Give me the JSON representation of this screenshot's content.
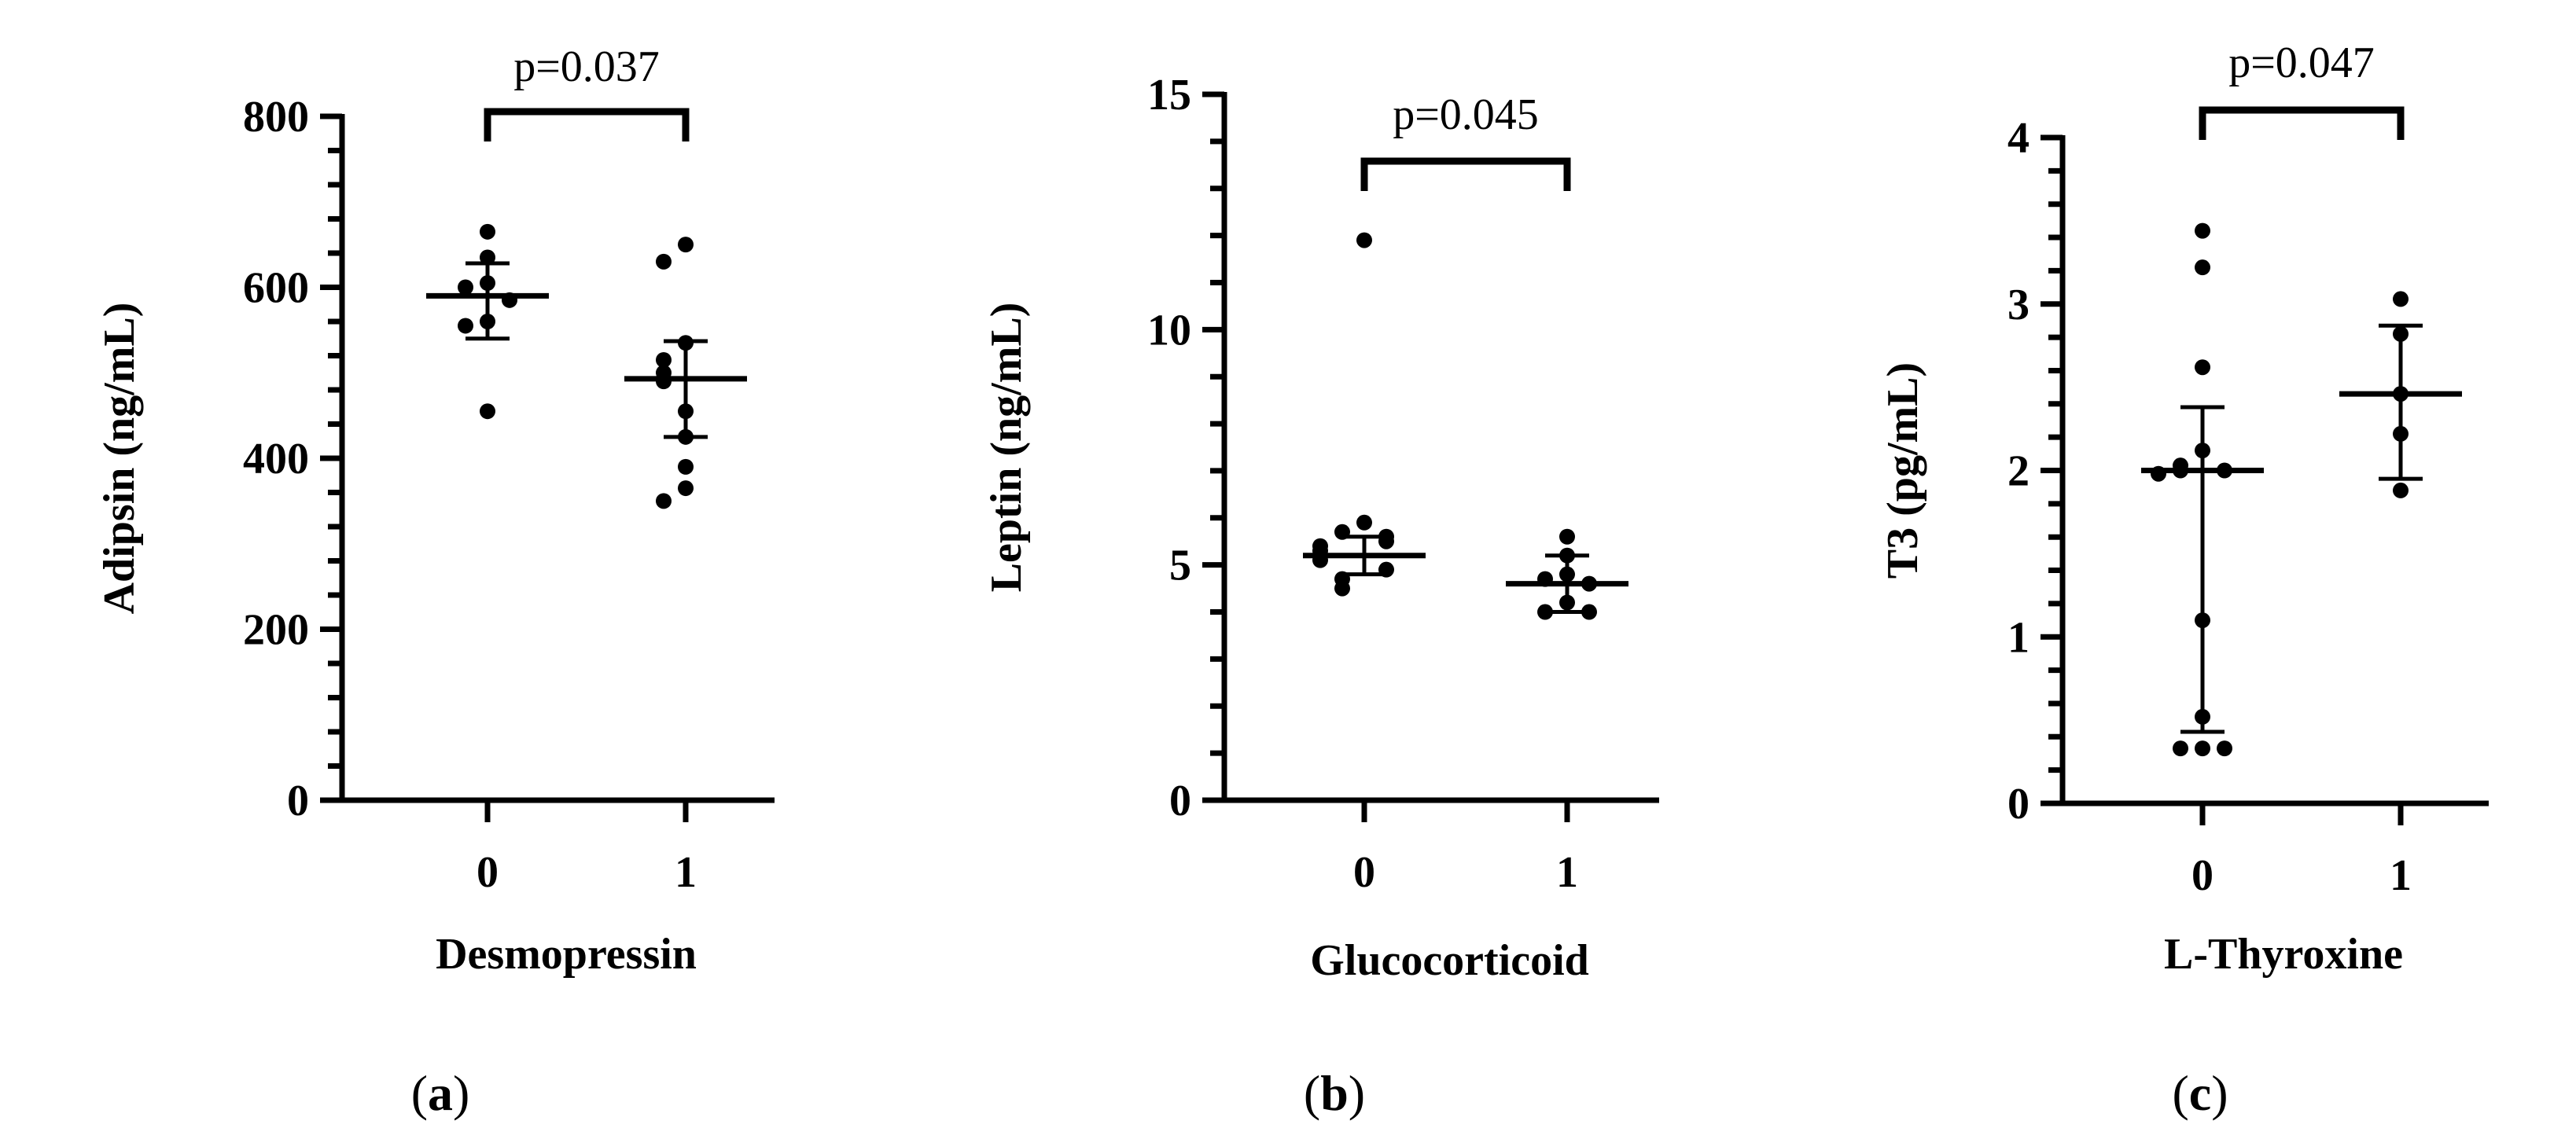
{
  "chart_data": [
    {
      "type": "scatter",
      "panel_label": "a",
      "xlabel": "Desmopressin",
      "ylabel": "Adipsin (ng/mL)",
      "categories": [
        "0",
        "1"
      ],
      "yticks": [
        "0",
        "200",
        "400",
        "600",
        "800"
      ],
      "ylim": [
        0,
        800
      ],
      "pvalue": "p=0.037",
      "groups": [
        {
          "category": "0",
          "mean": 590,
          "err_low": 540,
          "err_high": 628,
          "points": [
            665,
            635,
            605,
            600,
            585,
            560,
            555,
            455
          ]
        },
        {
          "category": "1",
          "mean": 493,
          "err_low": 425,
          "err_high": 537,
          "points": [
            650,
            630,
            535,
            515,
            500,
            490,
            455,
            425,
            390,
            365,
            350
          ]
        }
      ]
    },
    {
      "type": "scatter",
      "panel_label": "b",
      "xlabel": "Glucocorticoid",
      "ylabel": "Leptin (ng/mL)",
      "categories": [
        "0",
        "1"
      ],
      "yticks": [
        "0",
        "5",
        "10",
        "15"
      ],
      "ylim": [
        0,
        15
      ],
      "pvalue": "p=0.045",
      "groups": [
        {
          "category": "0",
          "mean": 5.2,
          "err_low": 4.8,
          "err_high": 5.6,
          "points": [
            11.9,
            5.9,
            5.7,
            5.6,
            5.5,
            5.4,
            5.3,
            5.2,
            5.1,
            4.9,
            4.7,
            4.5
          ]
        },
        {
          "category": "1",
          "mean": 4.6,
          "err_low": 4.0,
          "err_high": 5.2,
          "points": [
            5.6,
            5.2,
            4.8,
            4.7,
            4.6,
            4.2,
            4.0,
            4.0
          ]
        }
      ]
    },
    {
      "type": "scatter",
      "panel_label": "c",
      "xlabel": "L-Thyroxine",
      "ylabel": "T3 (pg/mL)",
      "categories": [
        "0",
        "1"
      ],
      "yticks": [
        "0",
        "1",
        "2",
        "3",
        "4"
      ],
      "ylim": [
        0,
        4
      ],
      "pvalue": "p=0.047",
      "groups": [
        {
          "category": "0",
          "mean": 2.0,
          "err_low": 0.43,
          "err_high": 2.38,
          "points": [
            3.44,
            3.22,
            2.62,
            2.12,
            2.03,
            2.0,
            2.0,
            1.98,
            1.1,
            0.52,
            0.33,
            0.33,
            0.33
          ]
        },
        {
          "category": "1",
          "mean": 2.46,
          "err_low": 1.95,
          "err_high": 2.87,
          "points": [
            3.03,
            2.82,
            2.46,
            2.22,
            1.88
          ]
        }
      ]
    }
  ]
}
